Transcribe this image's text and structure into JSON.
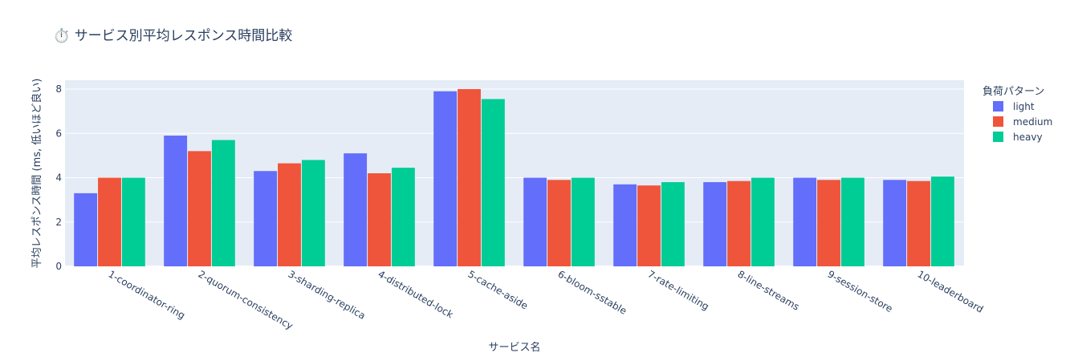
{
  "chart_data": {
    "type": "bar",
    "title": "⏱️ サービス別平均レスポンス時間比較",
    "xlabel": "サービス名",
    "ylabel": "平均レスポンス時間 (ms, 低いほど良い)",
    "ylim": [
      0,
      8.4
    ],
    "yticks": [
      0,
      2,
      4,
      6,
      8
    ],
    "grid": true,
    "legend_title": "負荷パターン",
    "legend_position": "right",
    "categories": [
      "1-coordinator-ring",
      "2-quorum-consistency",
      "3-sharding-replica",
      "4-distributed-lock",
      "5-cache-aside",
      "6-bloom-sstable",
      "7-rate-limiting",
      "8-line-streams",
      "9-session-store",
      "10-leaderboard"
    ],
    "series": [
      {
        "name": "light",
        "color": "#636efa",
        "values": [
          3.3,
          5.9,
          4.3,
          5.1,
          7.9,
          4.0,
          3.7,
          3.8,
          4.0,
          3.9
        ]
      },
      {
        "name": "medium",
        "color": "#ef553b",
        "values": [
          4.0,
          5.2,
          4.65,
          4.2,
          8.0,
          3.9,
          3.65,
          3.85,
          3.9,
          3.85
        ]
      },
      {
        "name": "heavy",
        "color": "#00cc96",
        "values": [
          4.0,
          5.7,
          4.8,
          4.45,
          7.55,
          4.0,
          3.8,
          4.0,
          4.0,
          4.05
        ]
      }
    ]
  }
}
